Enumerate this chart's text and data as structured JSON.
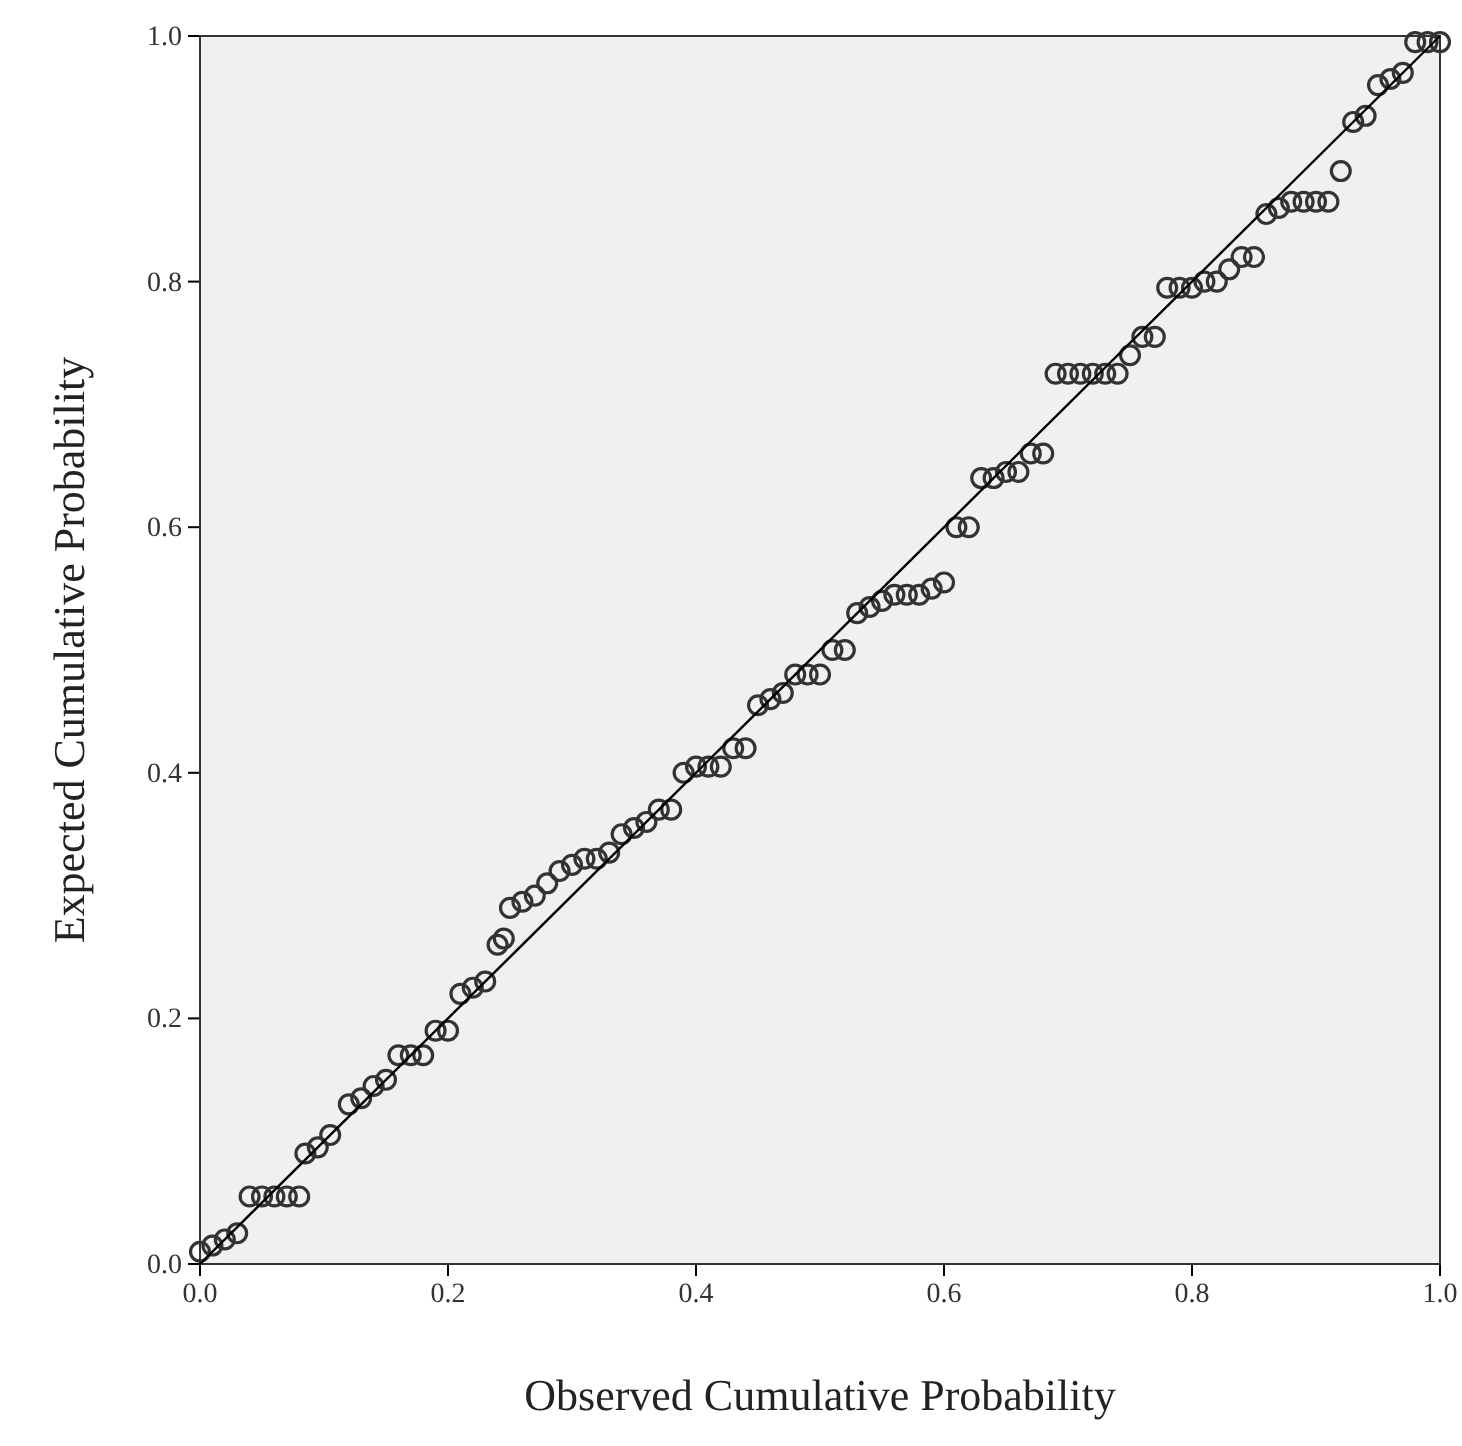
{
  "chart_data": {
    "type": "scatter",
    "xlabel": "Observed  Cumulative Probability",
    "ylabel": "Expected Cumulative Probability",
    "xlim": [
      0,
      1
    ],
    "ylim": [
      0,
      1
    ],
    "xticks": [
      {
        "value": 0,
        "label": "0.0"
      },
      {
        "value": 0.2,
        "label": "0.2"
      },
      {
        "value": 0.4,
        "label": "0.4"
      },
      {
        "value": 0.6,
        "label": "0.6"
      },
      {
        "value": 0.8,
        "label": "0.8"
      },
      {
        "value": 1,
        "label": "1.0"
      }
    ],
    "yticks": [
      {
        "value": 0,
        "label": "0.0"
      },
      {
        "value": 0.2,
        "label": "0.2"
      },
      {
        "value": 0.4,
        "label": "0.4"
      },
      {
        "value": 0.6,
        "label": "0.6"
      },
      {
        "value": 0.8,
        "label": "0.8"
      },
      {
        "value": 1,
        "label": "1.0"
      }
    ],
    "grid": false,
    "series": [
      {
        "color": "#333333",
        "marker": "circle",
        "x": [
          0,
          0.01,
          0.02,
          0.03,
          0.04,
          0.05,
          0.06,
          0.07,
          0.08,
          0.085,
          0.095,
          0.105,
          0.12,
          0.13,
          0.14,
          0.15,
          0.16,
          0.17,
          0.18,
          0.19,
          0.2,
          0.21,
          0.22,
          0.23,
          0.24,
          0.245,
          0.25,
          0.26,
          0.27,
          0.28,
          0.29,
          0.3,
          0.31,
          0.32,
          0.33,
          0.34,
          0.35,
          0.36,
          0.37,
          0.38,
          0.39,
          0.4,
          0.41,
          0.42,
          0.43,
          0.44,
          0.45,
          0.46,
          0.47,
          0.48,
          0.49,
          0.5,
          0.51,
          0.52,
          0.53,
          0.54,
          0.55,
          0.56,
          0.57,
          0.58,
          0.59,
          0.6,
          0.61,
          0.62,
          0.63,
          0.64,
          0.65,
          0.66,
          0.67,
          0.68,
          0.69,
          0.7,
          0.71,
          0.72,
          0.73,
          0.74,
          0.75,
          0.76,
          0.77,
          0.78,
          0.79,
          0.8,
          0.81,
          0.82,
          0.83,
          0.84,
          0.85,
          0.86,
          0.87,
          0.88,
          0.89,
          0.9,
          0.91,
          0.92,
          0.93,
          0.94,
          0.95,
          0.96,
          0.97,
          0.98,
          0.99,
          1
        ],
        "values": [
          0.01,
          0.015,
          0.02,
          0.025,
          0.055,
          0.055,
          0.055,
          0.055,
          0.055,
          0.09,
          0.095,
          0.105,
          0.13,
          0.135,
          0.145,
          0.15,
          0.17,
          0.17,
          0.17,
          0.19,
          0.19,
          0.22,
          0.225,
          0.23,
          0.26,
          0.265,
          0.29,
          0.295,
          0.3,
          0.31,
          0.32,
          0.325,
          0.33,
          0.33,
          0.335,
          0.35,
          0.355,
          0.36,
          0.37,
          0.37,
          0.4,
          0.405,
          0.405,
          0.405,
          0.42,
          0.42,
          0.455,
          0.46,
          0.465,
          0.48,
          0.48,
          0.48,
          0.5,
          0.5,
          0.53,
          0.535,
          0.54,
          0.545,
          0.545,
          0.545,
          0.55,
          0.555,
          0.6,
          0.6,
          0.64,
          0.64,
          0.645,
          0.645,
          0.66,
          0.66,
          0.725,
          0.725,
          0.725,
          0.725,
          0.725,
          0.725,
          0.74,
          0.755,
          0.755,
          0.795,
          0.795,
          0.795,
          0.8,
          0.8,
          0.81,
          0.82,
          0.82,
          0.855,
          0.86,
          0.865,
          0.865,
          0.865,
          0.865,
          0.89,
          0.93,
          0.935,
          0.96,
          0.965,
          0.97,
          0.995,
          0.995,
          0.995
        ]
      },
      {
        "type": "line",
        "marker": "none",
        "color": "#000000",
        "x": [
          0,
          1
        ],
        "values": [
          0,
          1
        ]
      }
    ]
  }
}
